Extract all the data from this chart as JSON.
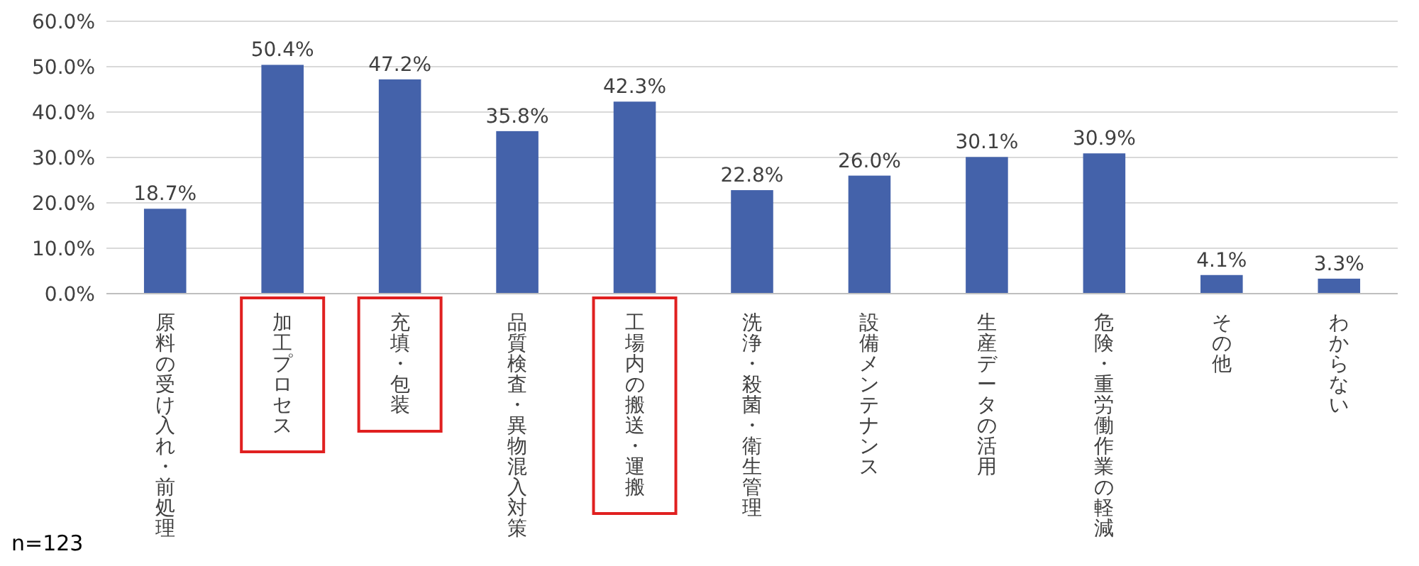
{
  "chart_data": {
    "type": "bar",
    "categories": [
      "原料の受け入れ・前処理",
      "加工プロセス",
      "充填・包装",
      "品質検査・異物混入対策",
      "工場内の搬送・運搬",
      "洗浄・殺菌・衛生管理",
      "設備メンテナンス",
      "生産データの活用",
      "危険・重労働作業の軽減",
      "その他",
      "わからない"
    ],
    "values": [
      18.7,
      50.4,
      47.2,
      35.8,
      42.3,
      22.8,
      26.0,
      30.1,
      30.9,
      4.1,
      3.3
    ],
    "value_labels": [
      "18.7%",
      "50.4%",
      "47.2%",
      "35.8%",
      "42.3%",
      "22.8%",
      "26.0%",
      "30.1%",
      "30.9%",
      "4.1%",
      "3.3%"
    ],
    "color": "#4462aa",
    "ylim": [
      0,
      60
    ],
    "yticks": [
      {
        "value": 0,
        "label": "0.0%"
      },
      {
        "value": 10,
        "label": "10.0%"
      },
      {
        "value": 20,
        "label": "20.0%"
      },
      {
        "value": 30,
        "label": "30.0%"
      },
      {
        "value": 40,
        "label": "40.0%"
      },
      {
        "value": 50,
        "label": "50.0%"
      },
      {
        "value": 60,
        "label": "60.0%"
      }
    ],
    "grid": "y",
    "annotations": [
      "n=123"
    ]
  }
}
